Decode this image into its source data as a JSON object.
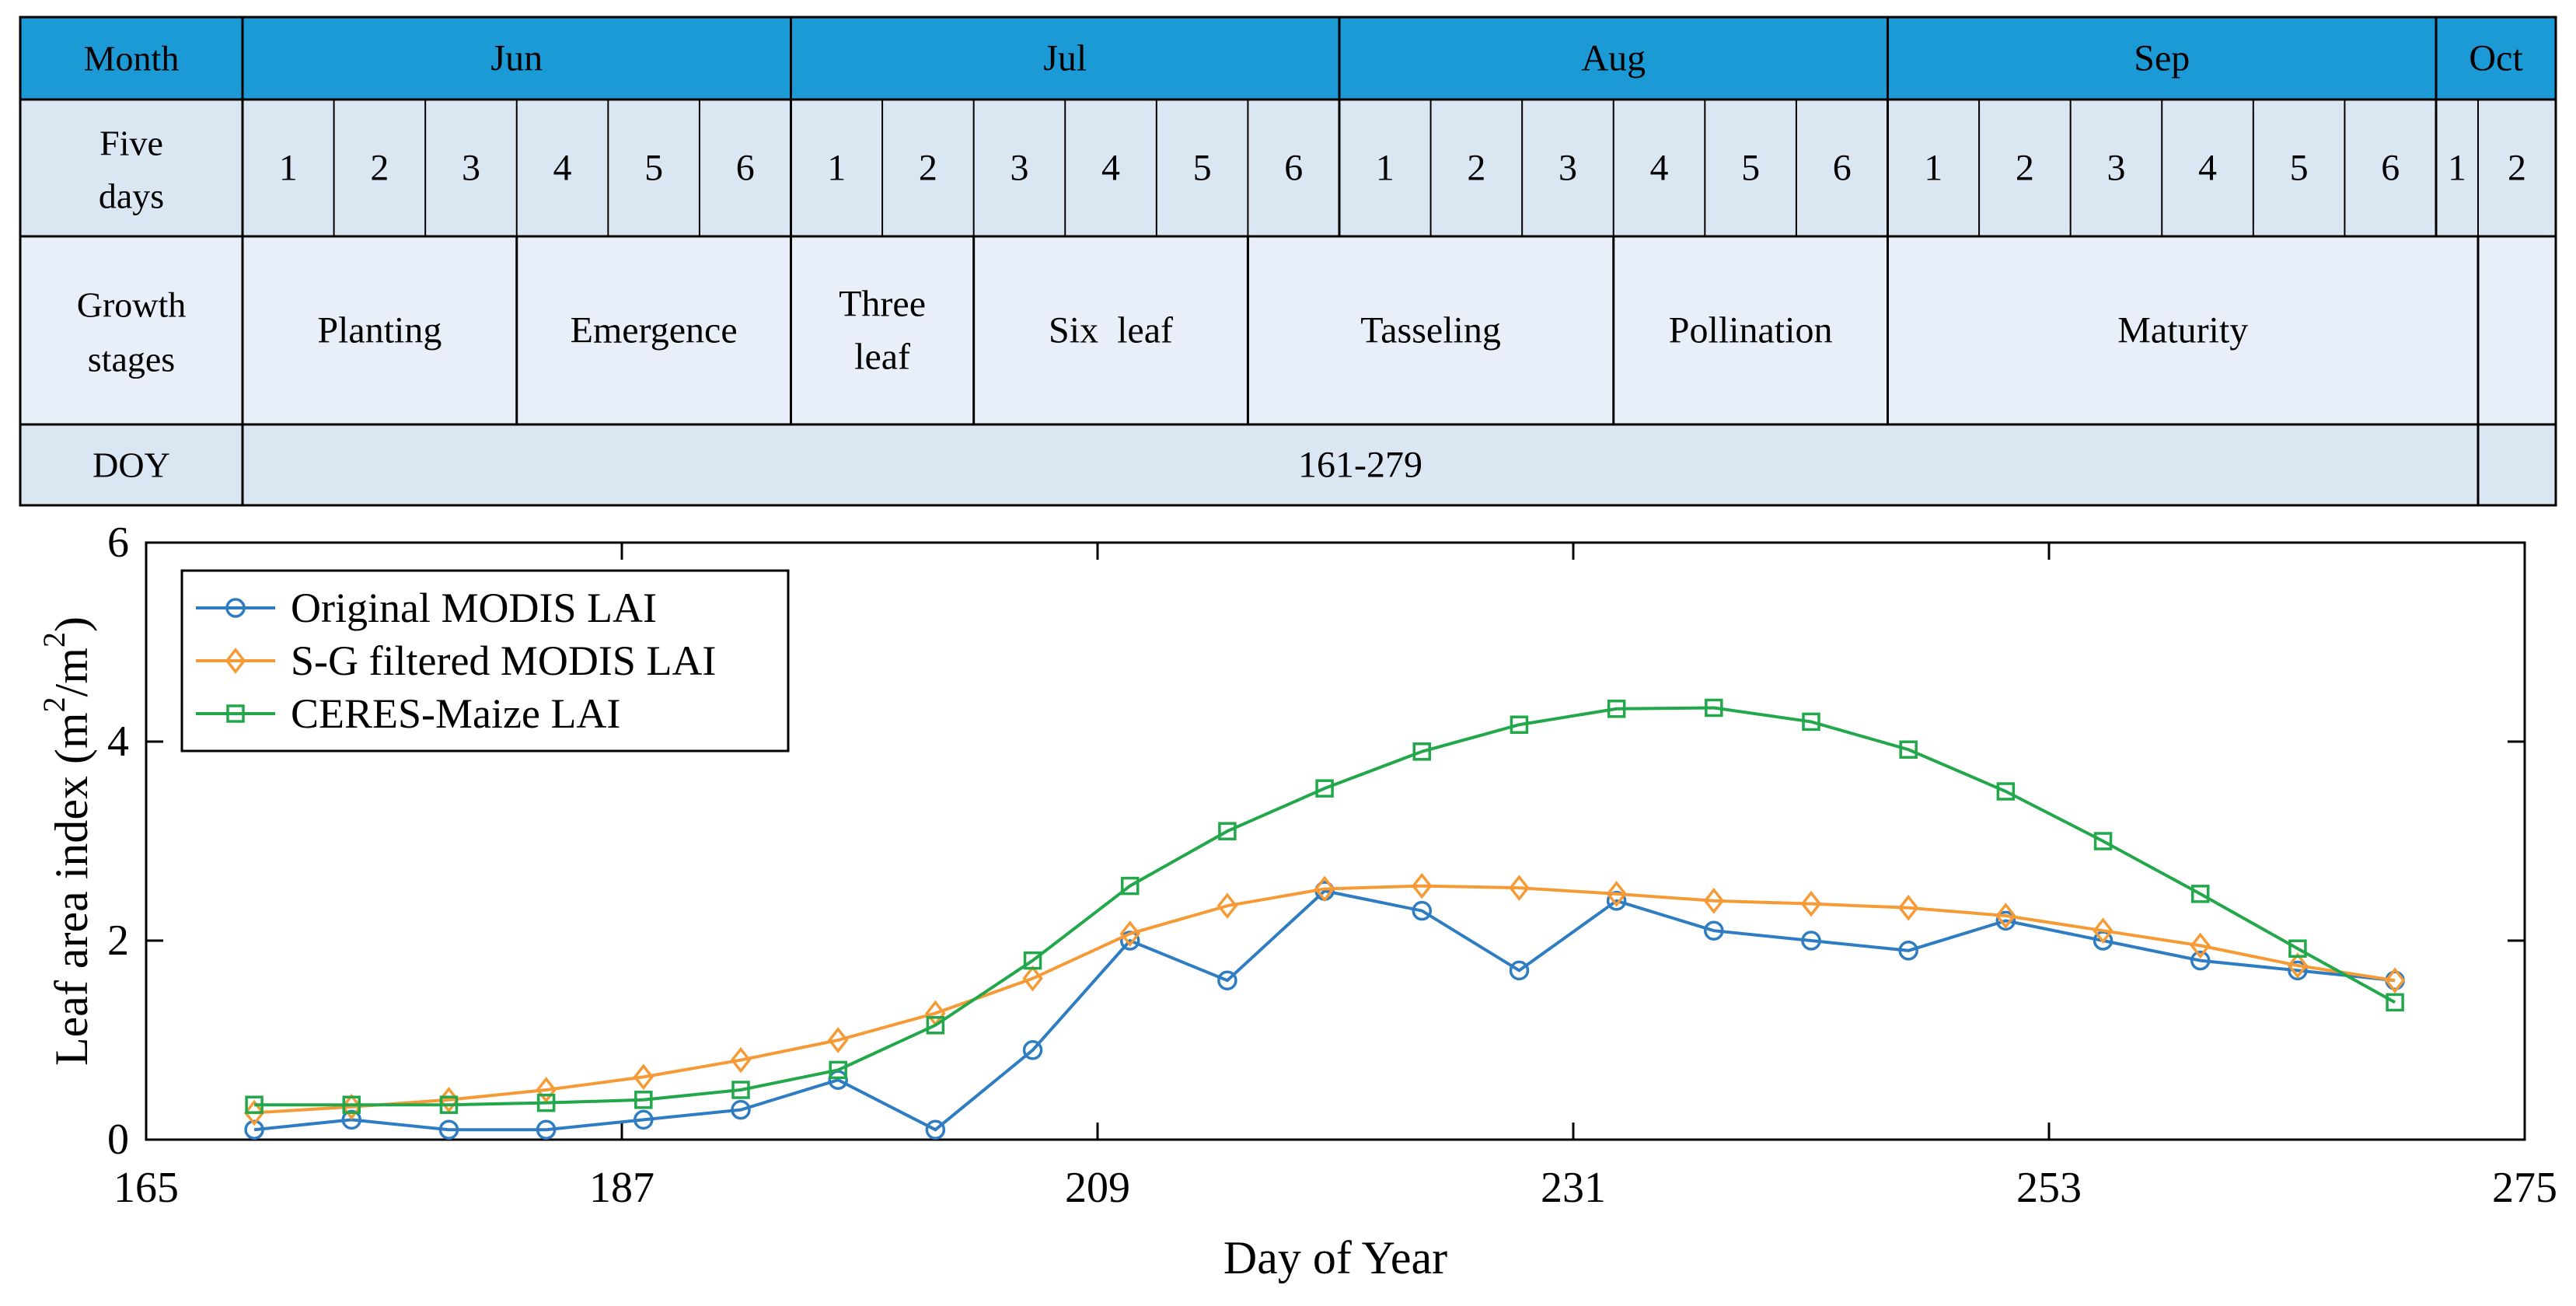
{
  "table": {
    "colors": {
      "header": "#1b9ad6",
      "row_light": "#dbe6f3",
      "row_lighter": "#e9eff8",
      "border": "#000000"
    },
    "row_labels": {
      "month": "Month",
      "five_days": [
        "Five",
        "days"
      ],
      "growth": [
        "Growth",
        "stages"
      ],
      "doy": "DOY"
    },
    "months": [
      "Jun",
      "Jul",
      "Aug",
      "Sep",
      "Oct"
    ],
    "five_days": [
      "1",
      "2",
      "3",
      "4",
      "5",
      "6",
      "1",
      "2",
      "3",
      "4",
      "5",
      "6",
      "1",
      "2",
      "3",
      "4",
      "5",
      "6",
      "1",
      "2",
      "3",
      "4",
      "5",
      "6",
      "1",
      "2"
    ],
    "stages": [
      {
        "lines": [
          "Planting"
        ]
      },
      {
        "lines": [
          "Emergence"
        ]
      },
      {
        "lines": [
          "Three",
          "leaf"
        ]
      },
      {
        "lines": [
          "Six  leaf"
        ]
      },
      {
        "lines": [
          "Tasseling"
        ]
      },
      {
        "lines": [
          "Pollination"
        ]
      },
      {
        "lines": [
          "Maturity"
        ]
      },
      {
        "lines": []
      }
    ],
    "doy_range": "161-279"
  },
  "chart_data": {
    "type": "line",
    "xlabel": "Day of Year",
    "ylabel": "Leaf area index (m",
    "ylabel_sup1": "2",
    "ylabel_mid": "/m",
    "ylabel_sup2": "2",
    "ylabel_end": ")",
    "xlim": [
      165,
      275
    ],
    "ylim": [
      0,
      6
    ],
    "xticks": [
      165,
      187,
      209,
      231,
      253,
      275
    ],
    "yticks": [
      0,
      2,
      4,
      6
    ],
    "x": [
      170,
      174.5,
      179,
      183.5,
      188,
      192.5,
      197,
      201.5,
      206,
      210.5,
      215,
      219.5,
      224,
      228.5,
      233,
      237.5,
      242,
      246.5,
      251,
      255.5,
      260,
      264.5,
      269
    ],
    "legend_position": "top-left",
    "series": [
      {
        "name": "Original MODIS LAI",
        "color": "#2e7cc2",
        "marker": "circle",
        "values": [
          0.1,
          0.2,
          0.1,
          0.1,
          0.2,
          0.3,
          0.6,
          0.1,
          0.9,
          2.0,
          1.6,
          2.5,
          2.3,
          1.7,
          2.4,
          2.1,
          2.0,
          1.9,
          2.2,
          2.0,
          1.8,
          1.7,
          1.6
        ]
      },
      {
        "name": "S-G filtered MODIS LAI",
        "color": "#f59a35",
        "marker": "diamond",
        "values": [
          0.27,
          0.33,
          0.4,
          0.5,
          0.63,
          0.8,
          1.0,
          1.27,
          1.62,
          2.07,
          2.35,
          2.52,
          2.55,
          2.53,
          2.47,
          2.4,
          2.37,
          2.33,
          2.25,
          2.1,
          1.95,
          1.75,
          1.6
        ]
      },
      {
        "name": "CERES-Maize LAI",
        "color": "#22a84a",
        "marker": "square",
        "values": [
          0.35,
          0.35,
          0.35,
          0.37,
          0.4,
          0.5,
          0.7,
          1.15,
          1.8,
          2.55,
          3.1,
          3.53,
          3.9,
          4.17,
          4.33,
          4.34,
          4.2,
          3.92,
          3.5,
          3.0,
          2.47,
          1.92,
          1.38
        ]
      }
    ]
  }
}
